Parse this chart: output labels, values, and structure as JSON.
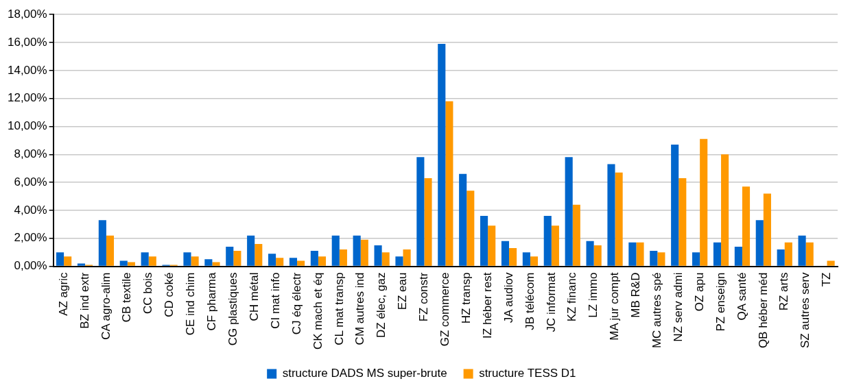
{
  "chart_data": {
    "type": "bar",
    "categories": [
      "AZ agric",
      "BZ ind extr",
      "CA agro-alim",
      "CB textile",
      "CC bois",
      "CD coké",
      "CE ind chim",
      "CF pharma",
      "CG plastiques",
      "CH métal",
      "CI mat info",
      "CJ éq électr",
      "CK mach et éq",
      "CL mat transp",
      "CM autres ind",
      "DZ élec, gaz",
      "EZ eau",
      "FZ constr",
      "GZ commerce",
      "HZ transp",
      "IZ héber rest",
      "JA audiov",
      "JB télécom",
      "JC informat",
      "KZ financ",
      "LZ immo",
      "MA jur compt",
      "MB R&D",
      "MC autres spé",
      "NZ serv admi",
      "OZ apu",
      "PZ enseign",
      "QA santé",
      "QB héber méd",
      "RZ arts",
      "SZ autres serv",
      "TZ"
    ],
    "series": [
      {
        "name": "structure DADS MS super-brute",
        "color": "#0066cc",
        "values": [
          1.0,
          0.2,
          3.3,
          0.4,
          1.0,
          0.1,
          1.0,
          0.5,
          1.4,
          2.2,
          0.9,
          0.6,
          1.1,
          2.2,
          2.2,
          1.5,
          0.7,
          7.8,
          15.9,
          6.6,
          3.6,
          1.8,
          1.0,
          3.6,
          7.8,
          1.8,
          7.3,
          1.7,
          1.1,
          8.7,
          1.0,
          1.7,
          1.4,
          3.3,
          1.2,
          2.2,
          null
        ]
      },
      {
        "name": "structure TESS D1",
        "color": "#ff9900",
        "values": [
          0.7,
          0.1,
          2.2,
          0.3,
          0.7,
          0.1,
          0.7,
          0.3,
          1.1,
          1.6,
          0.6,
          0.4,
          0.7,
          1.2,
          1.9,
          1.0,
          1.2,
          6.3,
          11.8,
          5.4,
          2.9,
          1.3,
          0.7,
          2.9,
          4.4,
          1.5,
          6.7,
          1.7,
          1.0,
          6.3,
          9.1,
          8.0,
          5.7,
          5.2,
          1.7,
          1.7,
          0.4
        ]
      }
    ],
    "ylim": [
      0,
      18
    ],
    "yticks": [
      {
        "value": 0,
        "label": "0,00%"
      },
      {
        "value": 2,
        "label": "2,00%"
      },
      {
        "value": 4,
        "label": "4,00%"
      },
      {
        "value": 6,
        "label": "6,00%"
      },
      {
        "value": 8,
        "label": "8,00%"
      },
      {
        "value": 10,
        "label": "10,00%"
      },
      {
        "value": 12,
        "label": "12,00%"
      },
      {
        "value": 14,
        "label": "14,00%"
      },
      {
        "value": 16,
        "label": "16,00%"
      },
      {
        "value": 18,
        "label": "18,00%"
      }
    ],
    "grid": "y",
    "legend": "bottom"
  }
}
